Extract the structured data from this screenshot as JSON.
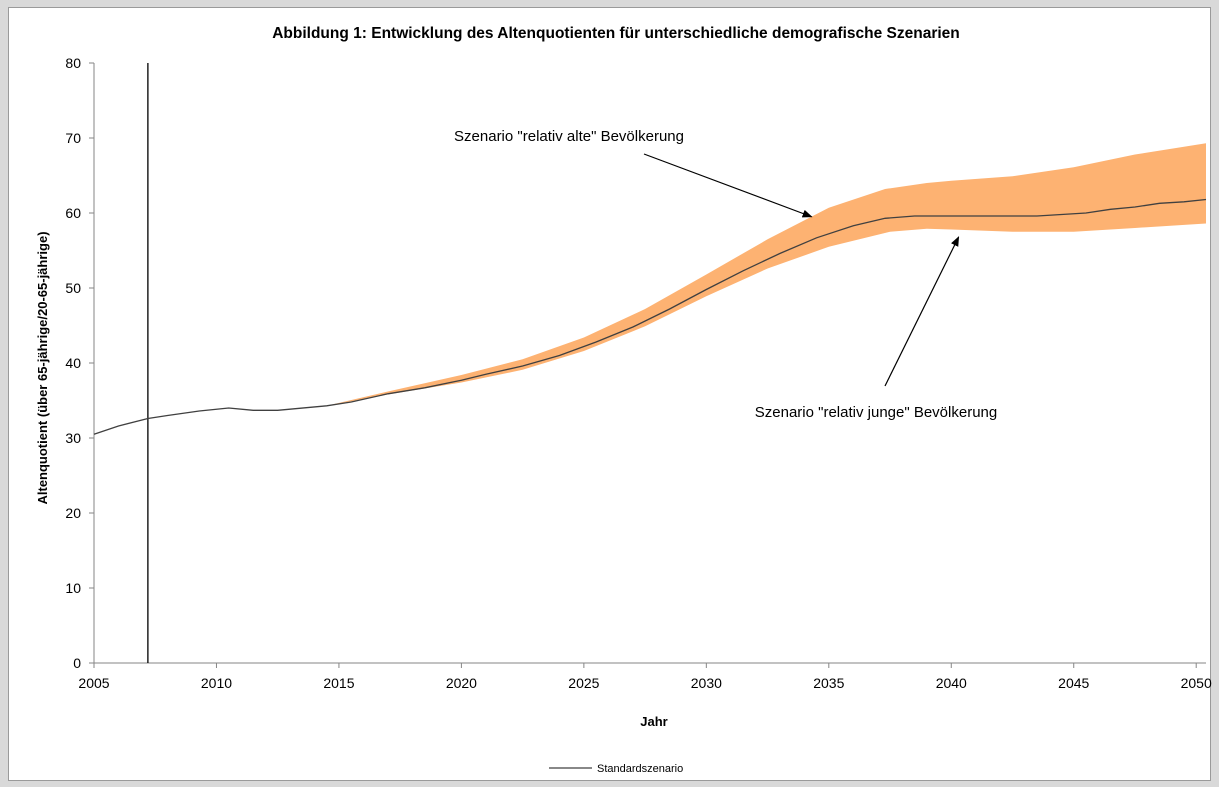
{
  "chart_data": {
    "type": "area",
    "title": "Abbildung 1: Entwicklung des Altenquotienten für unterschiedliche demografische Szenarien",
    "xlabel": "Jahr",
    "ylabel": "Altenquotient (über 65-jährige/20-65-jährige)",
    "xlim": [
      2005,
      2050.4
    ],
    "ylim": [
      0,
      80
    ],
    "x_ticks": [
      2005,
      2010,
      2015,
      2020,
      2025,
      2030,
      2035,
      2040,
      2045,
      2050
    ],
    "y_ticks": [
      0,
      10,
      20,
      30,
      40,
      50,
      60,
      70,
      80
    ],
    "grid": false,
    "vertical_marker_x": 2007.2,
    "band_color": "#fdb272",
    "line_color": "#404040",
    "legend_position": "bottom",
    "series": [
      {
        "name": "Standardszenario",
        "kind": "line",
        "x": [
          2005,
          2006,
          2007.2,
          2008,
          2009.3,
          2010.5,
          2011.5,
          2012.5,
          2014.5,
          2015.5,
          2017,
          2018.5,
          2020,
          2021,
          2022.5,
          2024,
          2025.5,
          2027,
          2028.5,
          2030,
          2031.5,
          2033,
          2034.5,
          2036,
          2037.3,
          2038.5,
          2040,
          2042,
          2043.5,
          2045.5,
          2046.5,
          2047.5,
          2048.5,
          2049.5,
          2050.4
        ],
        "y": [
          30.5,
          31.6,
          32.6,
          33.0,
          33.6,
          34.0,
          33.7,
          33.7,
          34.3,
          34.8,
          35.9,
          36.7,
          37.7,
          38.5,
          39.6,
          41.0,
          42.8,
          44.8,
          47.2,
          49.8,
          52.3,
          54.6,
          56.7,
          58.3,
          59.3,
          59.6,
          59.6,
          59.6,
          59.6,
          60.0,
          60.5,
          60.8,
          61.3,
          61.5,
          61.8
        ]
      },
      {
        "name": "Szenario \"relativ alte\" Bevölkerung",
        "kind": "band-upper",
        "x": [
          2014.5,
          2017,
          2020,
          2022.5,
          2025,
          2027.5,
          2030,
          2032.5,
          2035,
          2037.3,
          2039,
          2040,
          2042.5,
          2045,
          2047.5,
          2050.4
        ],
        "y": [
          34.3,
          36.2,
          38.4,
          40.5,
          43.4,
          47.2,
          51.8,
          56.5,
          60.7,
          63.2,
          64.0,
          64.3,
          64.9,
          66.1,
          67.8,
          69.3
        ]
      },
      {
        "name": "Szenario \"relativ junge\" Bevölkerung",
        "kind": "band-lower",
        "x": [
          2014.5,
          2017,
          2020,
          2022.5,
          2025,
          2027.5,
          2030,
          2032.5,
          2035,
          2037.5,
          2039,
          2040,
          2042.5,
          2045,
          2047.5,
          2050.4
        ],
        "y": [
          34.3,
          35.8,
          37.4,
          39.1,
          41.6,
          44.9,
          48.9,
          52.6,
          55.5,
          57.5,
          57.9,
          57.8,
          57.5,
          57.5,
          58.0,
          58.6
        ]
      }
    ],
    "annotations": [
      {
        "text": "Szenario \"relativ alte\" Bevölkerung",
        "target": "band-upper",
        "arrow_to": [
          2034.3,
          59.5
        ]
      },
      {
        "text": "Szenario \"relativ junge\" Bevölkerung",
        "target": "band-lower",
        "arrow_to": [
          2040.3,
          56.8
        ]
      }
    ],
    "legend": [
      "Standardszenario"
    ]
  }
}
